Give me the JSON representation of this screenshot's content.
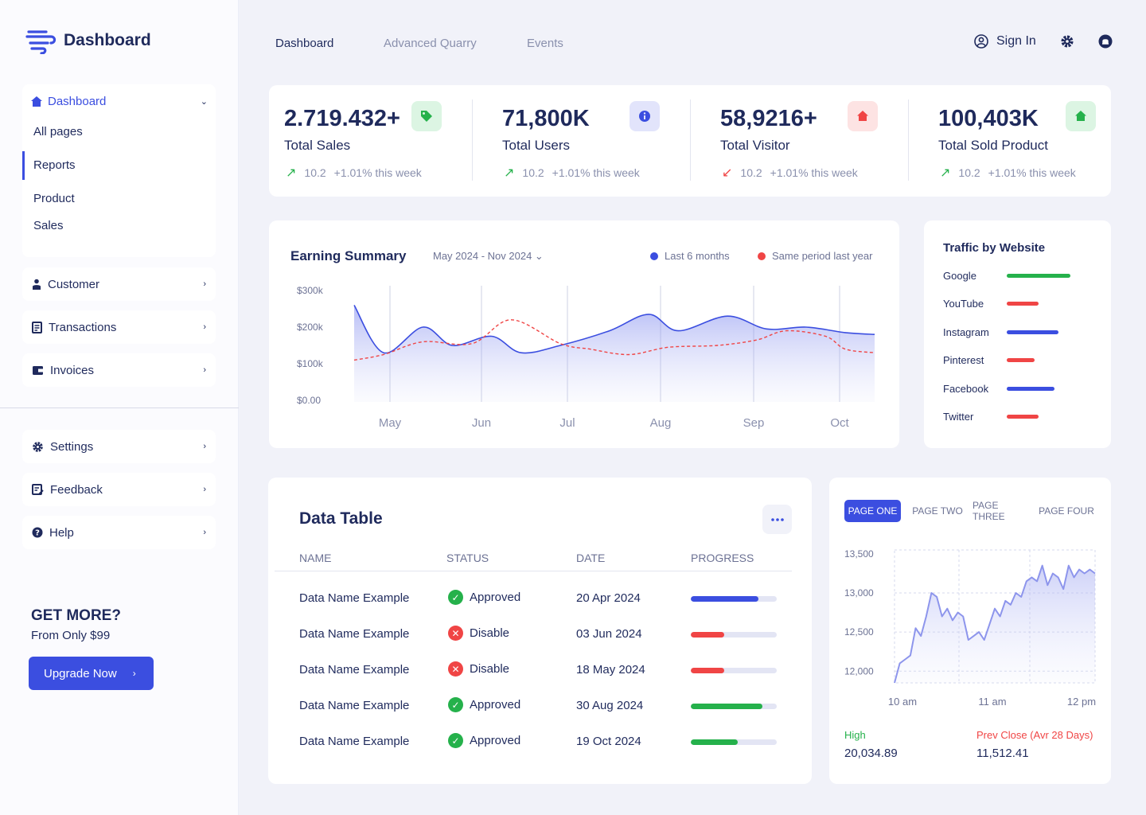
{
  "brand": {
    "name": "Dashboard"
  },
  "sidebar": {
    "group": {
      "label": "Dashboard",
      "items": [
        "All pages",
        "Reports",
        "Product",
        "Sales"
      ]
    },
    "items": [
      {
        "label": "Customer",
        "icon": "user-icon"
      },
      {
        "label": "Transactions",
        "icon": "receipt-icon"
      },
      {
        "label": "Invoices",
        "icon": "wallet-icon"
      }
    ],
    "bottom_items": [
      {
        "label": "Settings",
        "icon": "gear-icon"
      },
      {
        "label": "Feedback",
        "icon": "feedback-icon"
      },
      {
        "label": "Help",
        "icon": "help-icon"
      }
    ],
    "promo": {
      "title": "GET MORE?",
      "subtitle": "From Only $99",
      "button": "Upgrade Now"
    }
  },
  "topnav": {
    "tabs": [
      "Dashboard",
      "Advanced Quarry",
      "Events"
    ],
    "sign_in": "Sign In"
  },
  "stats": [
    {
      "value": "2.719.432+",
      "label": "Total Sales",
      "delta": "10.2",
      "note": "+1.01% this week",
      "trend": "up",
      "icon": "tag-icon",
      "icon_bg": "#dcf5e3",
      "icon_color": "#25b14b"
    },
    {
      "value": "71,800K",
      "label": "Total Users",
      "delta": "10.2",
      "note": "+1.01% this week",
      "trend": "up",
      "icon": "info-icon",
      "icon_bg": "#e2e4fb",
      "icon_color": "#3b4ee0"
    },
    {
      "value": "58,9216+",
      "label": "Total Visitor",
      "delta": "10.2",
      "note": "+1.01% this week",
      "trend": "down",
      "icon": "home-icon",
      "icon_bg": "#fde3e3",
      "icon_color": "#f04545"
    },
    {
      "value": "100,403K",
      "label": "Total Sold Product",
      "delta": "10.2",
      "note": "+1.01% this week",
      "trend": "up",
      "icon": "home-icon",
      "icon_bg": "#dcf5e3",
      "icon_color": "#25b14b"
    }
  ],
  "earning": {
    "title": "Earning Summary",
    "range": "May 2024 - Nov 2024",
    "legend": [
      "Last 6 months",
      "Same period last year"
    ],
    "chart_data": {
      "type": "area",
      "x": [
        "May",
        "Jun",
        "Jul",
        "Aug",
        "Sep",
        "Oct"
      ],
      "yticks": [
        "$300k",
        "$200k",
        "$100k",
        "$0.00"
      ],
      "ylim": [
        0,
        300
      ],
      "series": [
        {
          "name": "Last 6 months",
          "color": "#3b4ee0",
          "points": [
            [
              0,
              260
            ],
            [
              0.3,
              130
            ],
            [
              0.7,
              200
            ],
            [
              1.0,
              150
            ],
            [
              1.4,
              175
            ],
            [
              1.7,
              130
            ],
            [
              2.1,
              150
            ],
            [
              2.6,
              190
            ],
            [
              3.0,
              235
            ],
            [
              3.3,
              190
            ],
            [
              3.8,
              230
            ],
            [
              4.2,
              195
            ],
            [
              4.6,
              200
            ],
            [
              5.0,
              185
            ],
            [
              5.3,
              180
            ]
          ]
        },
        {
          "name": "Same period last year",
          "color": "#f04545",
          "points": [
            [
              0,
              110
            ],
            [
              0.3,
              125
            ],
            [
              0.7,
              160
            ],
            [
              1.2,
              155
            ],
            [
              1.6,
              220
            ],
            [
              2.1,
              155
            ],
            [
              2.4,
              140
            ],
            [
              2.8,
              125
            ],
            [
              3.2,
              145
            ],
            [
              3.7,
              150
            ],
            [
              4.1,
              165
            ],
            [
              4.4,
              190
            ],
            [
              4.8,
              175
            ],
            [
              5.0,
              140
            ],
            [
              5.3,
              130
            ]
          ]
        }
      ]
    }
  },
  "traffic": {
    "title": "Traffic by Website",
    "items": [
      {
        "name": "Google",
        "value": 80,
        "color": "#25b14b"
      },
      {
        "name": "YouTube",
        "value": 40,
        "color": "#f04545"
      },
      {
        "name": "Instagram",
        "value": 65,
        "color": "#3b4ee0"
      },
      {
        "name": "Pinterest",
        "value": 35,
        "color": "#f04545"
      },
      {
        "name": "Facebook",
        "value": 60,
        "color": "#3b4ee0"
      },
      {
        "name": "Twitter",
        "value": 40,
        "color": "#f04545"
      }
    ]
  },
  "table": {
    "title": "Data Table",
    "headers": [
      "NAME",
      "STATUS",
      "DATE",
      "PROGRESS"
    ],
    "rows": [
      {
        "name": "Data Name Example",
        "status": "Approved",
        "date": "20 Apr 2024",
        "progress": 0.79,
        "color": "#3b4ee0"
      },
      {
        "name": "Data Name Example",
        "status": "Disable",
        "date": "03 Jun 2024",
        "progress": 0.39,
        "color": "#f04545"
      },
      {
        "name": "Data Name Example",
        "status": "Disable",
        "date": "18 May 2024",
        "progress": 0.39,
        "color": "#f04545"
      },
      {
        "name": "Data Name Example",
        "status": "Approved",
        "date": "30 Aug 2024",
        "progress": 0.83,
        "color": "#25b14b"
      },
      {
        "name": "Data Name Example",
        "status": "Approved",
        "date": "19 Oct 2024",
        "progress": 0.55,
        "color": "#25b14b"
      }
    ]
  },
  "pages": {
    "tabs": [
      "PAGE ONE",
      "PAGE TWO",
      "PAGE THREE",
      "PAGE FOUR"
    ],
    "chart_data": {
      "type": "line",
      "yticks": [
        "13,500",
        "13,000",
        "12,500",
        "12,000"
      ],
      "ylim": [
        11850,
        13550
      ],
      "xticks": [
        "10 am",
        "11 am",
        "12 pm"
      ],
      "values": [
        11850,
        12100,
        12150,
        12200,
        12550,
        12450,
        12700,
        13000,
        12950,
        12700,
        12800,
        12650,
        12750,
        12700,
        12400,
        12450,
        12500,
        12400,
        12600,
        12800,
        12700,
        12900,
        12850,
        13000,
        12950,
        13150,
        13200,
        13150,
        13350,
        13100,
        13250,
        13200,
        13050,
        13350,
        13200,
        13300,
        13250,
        13300,
        13250
      ]
    },
    "high_label": "High",
    "high_value": "20,034.89",
    "prev_label": "Prev Close (Avr 28 Days)",
    "prev_value": "11,512.41"
  }
}
